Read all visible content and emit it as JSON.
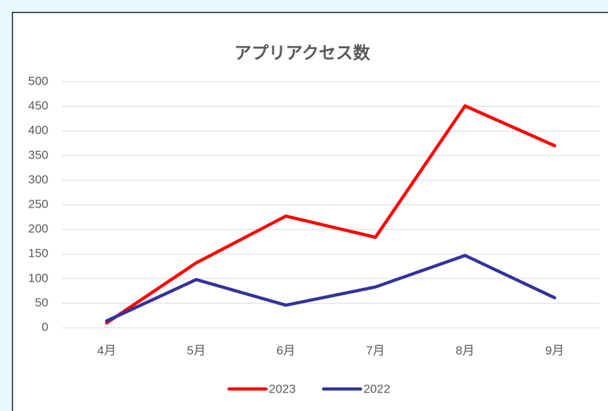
{
  "chart_data": {
    "type": "line",
    "title": "アプリアクセス数",
    "categories": [
      "4月",
      "5月",
      "6月",
      "7月",
      "8月",
      "9月"
    ],
    "series": [
      {
        "name": "2023",
        "color": "#ff0000",
        "values": [
          10,
          132,
          227,
          184,
          451,
          370
        ]
      },
      {
        "name": "2022",
        "color": "#333399",
        "values": [
          14,
          98,
          46,
          83,
          147,
          61
        ]
      }
    ],
    "ylim": [
      0,
      500
    ],
    "yticks": [
      0,
      50,
      100,
      150,
      200,
      250,
      300,
      350,
      400,
      450,
      500
    ],
    "grid": true,
    "legend": "bottom"
  }
}
